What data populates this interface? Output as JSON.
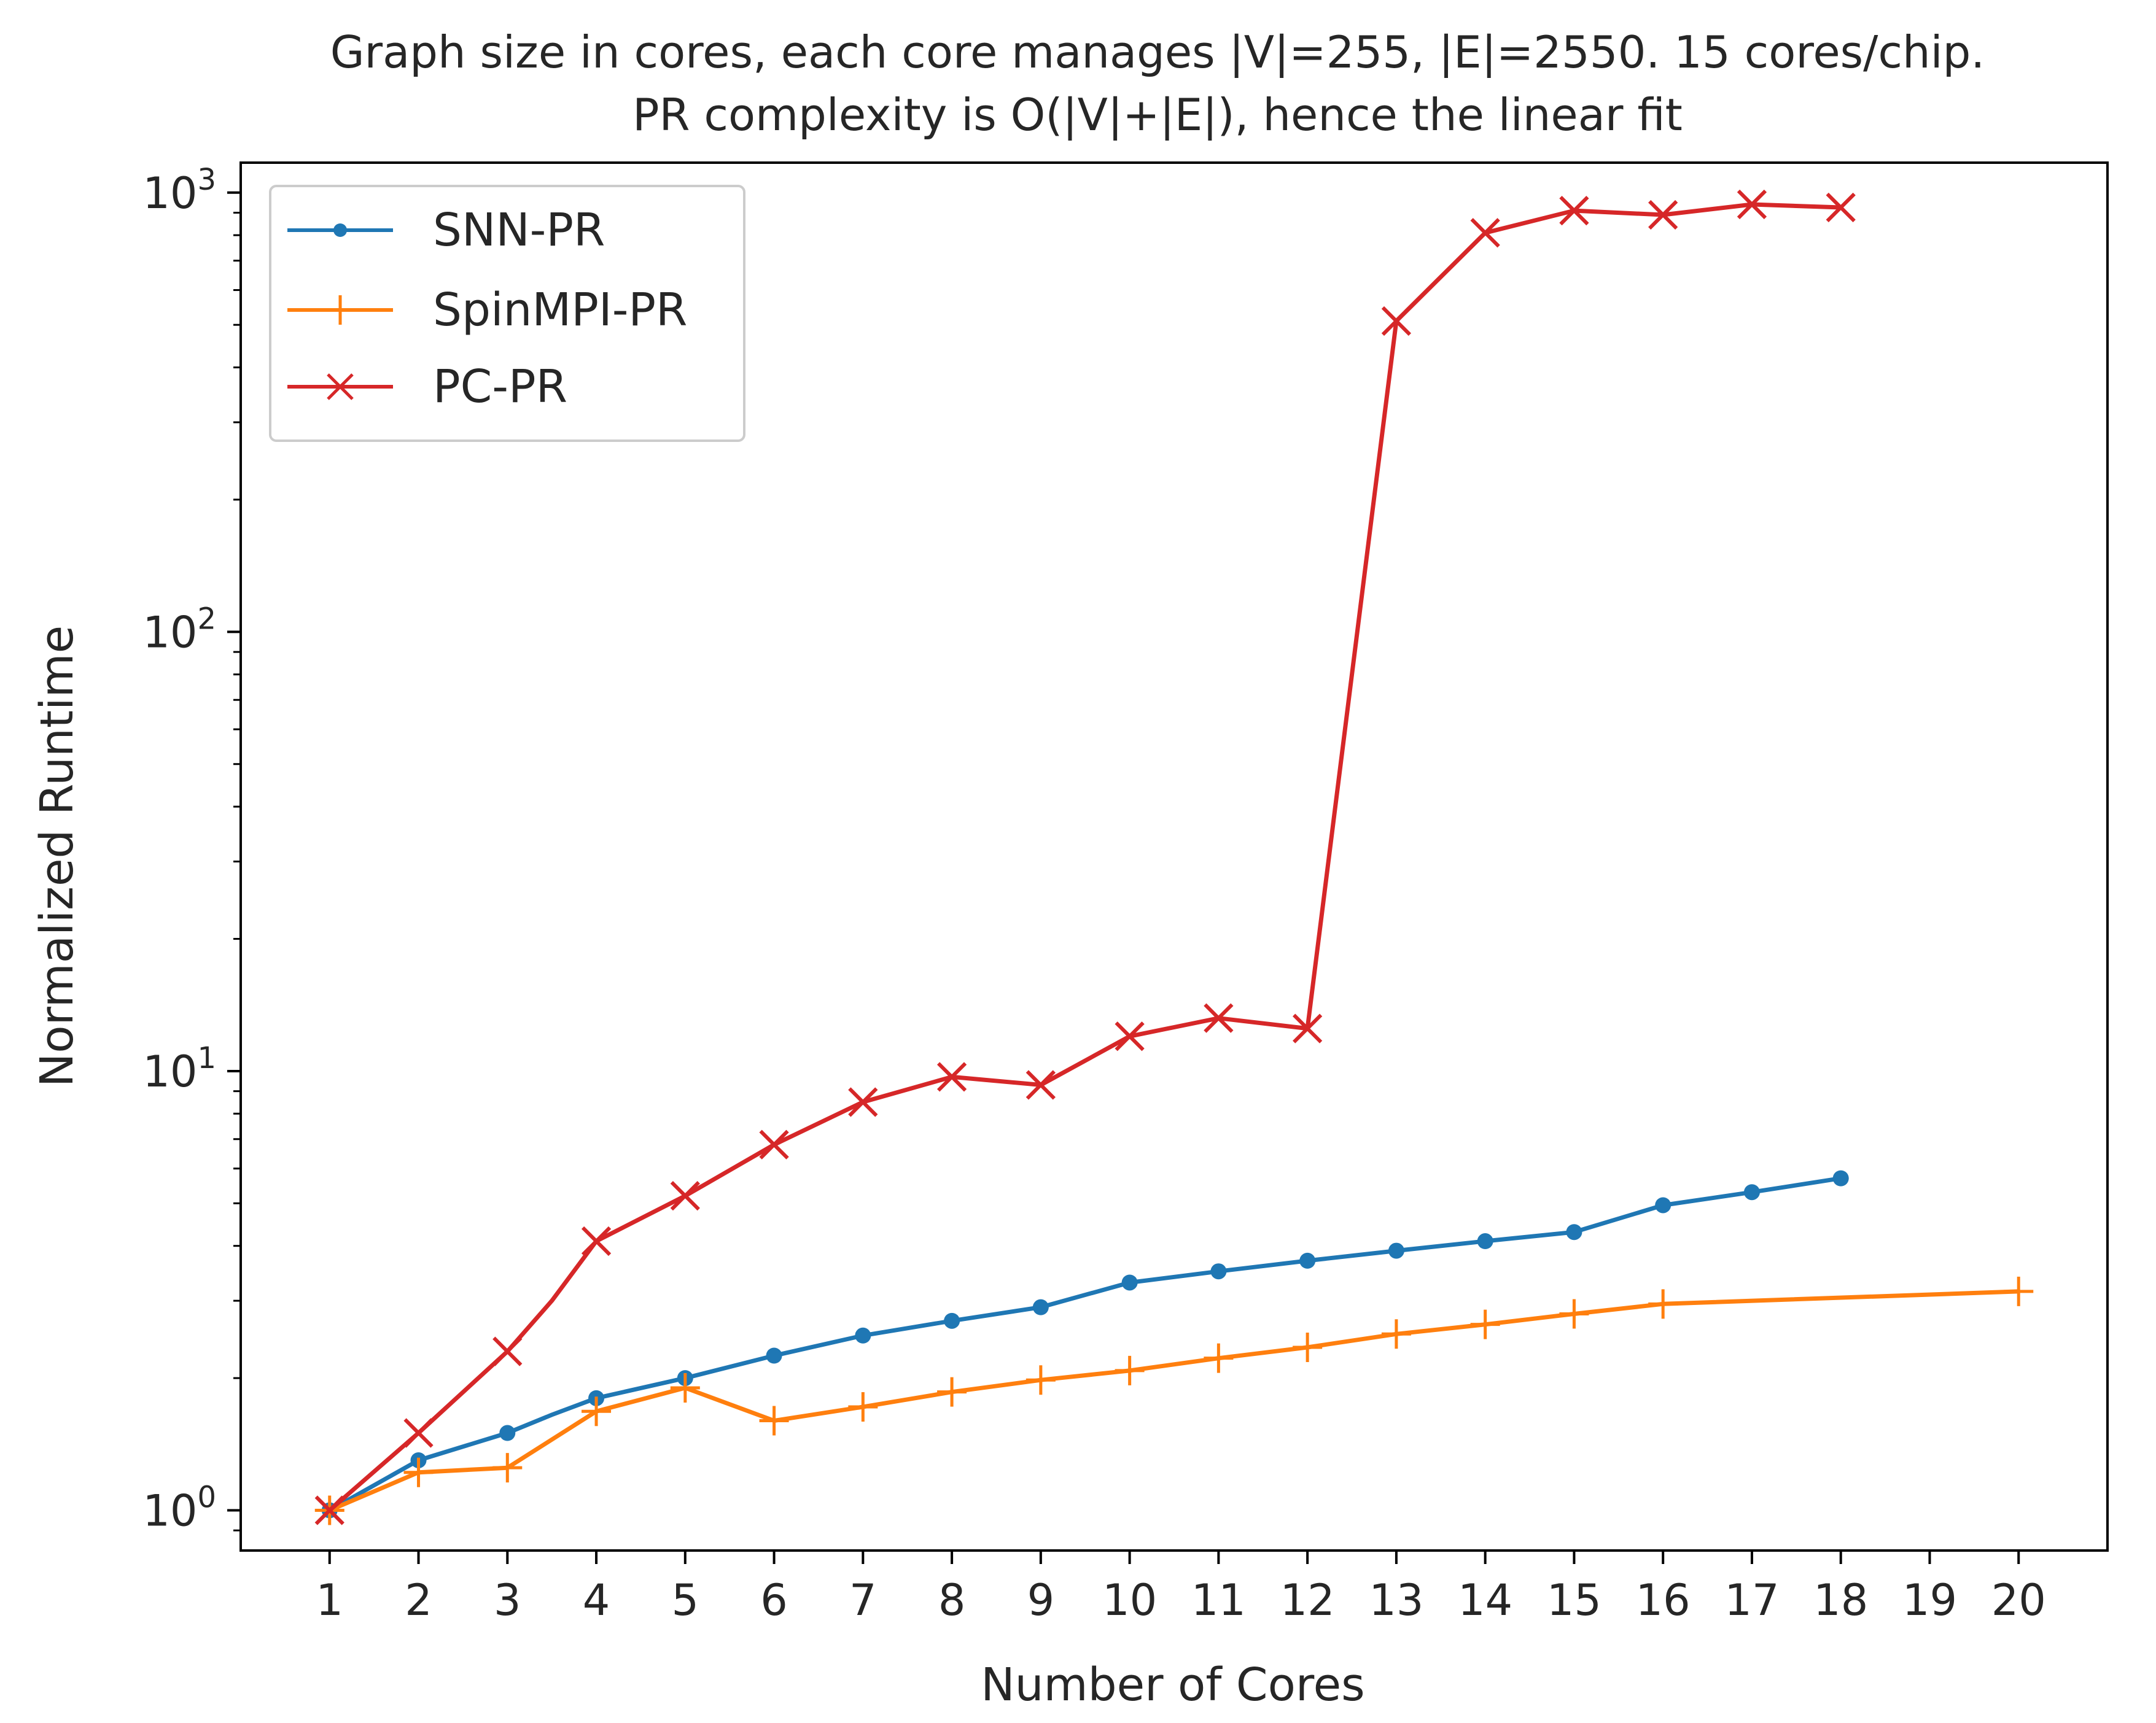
{
  "chart_data": {
    "type": "line",
    "title_line1": "Graph size in cores, each core manages |V|=255, |E|=2550. 15 cores/chip.",
    "title_line2": "PR complexity is O(|V|+|E|), hence the linear fit",
    "xlabel": "Number of Cores",
    "ylabel": "Normalized Runtime",
    "yscale": "log",
    "xlim": [
      0.0,
      21.0
    ],
    "ylim": [
      0.81,
      1170
    ],
    "x_ticks": [
      1,
      2,
      3,
      4,
      5,
      6,
      7,
      8,
      9,
      10,
      11,
      12,
      13,
      14,
      15,
      16,
      17,
      18,
      19,
      20
    ],
    "y_ticks": [
      {
        "value": 1,
        "base": "10",
        "exp": "0"
      },
      {
        "value": 10,
        "base": "10",
        "exp": "1"
      },
      {
        "value": 100,
        "base": "10",
        "exp": "2"
      },
      {
        "value": 1000,
        "base": "10",
        "exp": "3"
      }
    ],
    "legend_position": "upper-left",
    "series": [
      {
        "name": "SNN-PR",
        "color": "#1f77b4",
        "marker": "dot",
        "points": [
          [
            1,
            1.0
          ],
          [
            2,
            1.3
          ],
          [
            3,
            1.5
          ],
          [
            3.5,
            1.65
          ],
          [
            4,
            1.8
          ],
          [
            5,
            2.0
          ],
          [
            6,
            2.25
          ],
          [
            7,
            2.5
          ],
          [
            8,
            2.7
          ],
          [
            9,
            2.9
          ],
          [
            10,
            3.3
          ],
          [
            11,
            3.5
          ],
          [
            12,
            3.7
          ],
          [
            13,
            3.9
          ],
          [
            14,
            4.1
          ],
          [
            15,
            4.3
          ],
          [
            16,
            4.95
          ],
          [
            17,
            5.3
          ],
          [
            18,
            5.7
          ]
        ],
        "marked_x": [
          1,
          2,
          3,
          4,
          5,
          6,
          7,
          8,
          9,
          10,
          11,
          12,
          13,
          14,
          15,
          16,
          17,
          18
        ]
      },
      {
        "name": "SpinMPI-PR",
        "color": "#ff7f0e",
        "marker": "plus",
        "points": [
          [
            1,
            1.0
          ],
          [
            2,
            1.22
          ],
          [
            3,
            1.25
          ],
          [
            4,
            1.68
          ],
          [
            5,
            1.9
          ],
          [
            6,
            1.6
          ],
          [
            7,
            1.72
          ],
          [
            8,
            1.86
          ],
          [
            9,
            1.98
          ],
          [
            10,
            2.08
          ],
          [
            11,
            2.22
          ],
          [
            12,
            2.35
          ],
          [
            13,
            2.52
          ],
          [
            14,
            2.65
          ],
          [
            15,
            2.8
          ],
          [
            16,
            2.95
          ],
          [
            20,
            3.15
          ]
        ],
        "marked_x": [
          1,
          2,
          3,
          4,
          5,
          6,
          7,
          8,
          9,
          10,
          11,
          12,
          13,
          14,
          15,
          16,
          20
        ]
      },
      {
        "name": "PC-PR",
        "color": "#d62728",
        "marker": "x",
        "points": [
          [
            1,
            1.0
          ],
          [
            2,
            1.5
          ],
          [
            3,
            2.3
          ],
          [
            3.5,
            3.0
          ],
          [
            4,
            4.1
          ],
          [
            5,
            5.2
          ],
          [
            6,
            6.8
          ],
          [
            7,
            8.5
          ],
          [
            8,
            9.7
          ],
          [
            9,
            9.3
          ],
          [
            10,
            12.0
          ],
          [
            11,
            13.2
          ],
          [
            12,
            12.5
          ],
          [
            13,
            510
          ],
          [
            14,
            810
          ],
          [
            15,
            910
          ],
          [
            16,
            890
          ],
          [
            17,
            940
          ],
          [
            18,
            925
          ]
        ],
        "marked_x": [
          1,
          2,
          3,
          4,
          5,
          6,
          7,
          8,
          9,
          10,
          11,
          12,
          13,
          14,
          15,
          16,
          17,
          18
        ]
      }
    ]
  }
}
